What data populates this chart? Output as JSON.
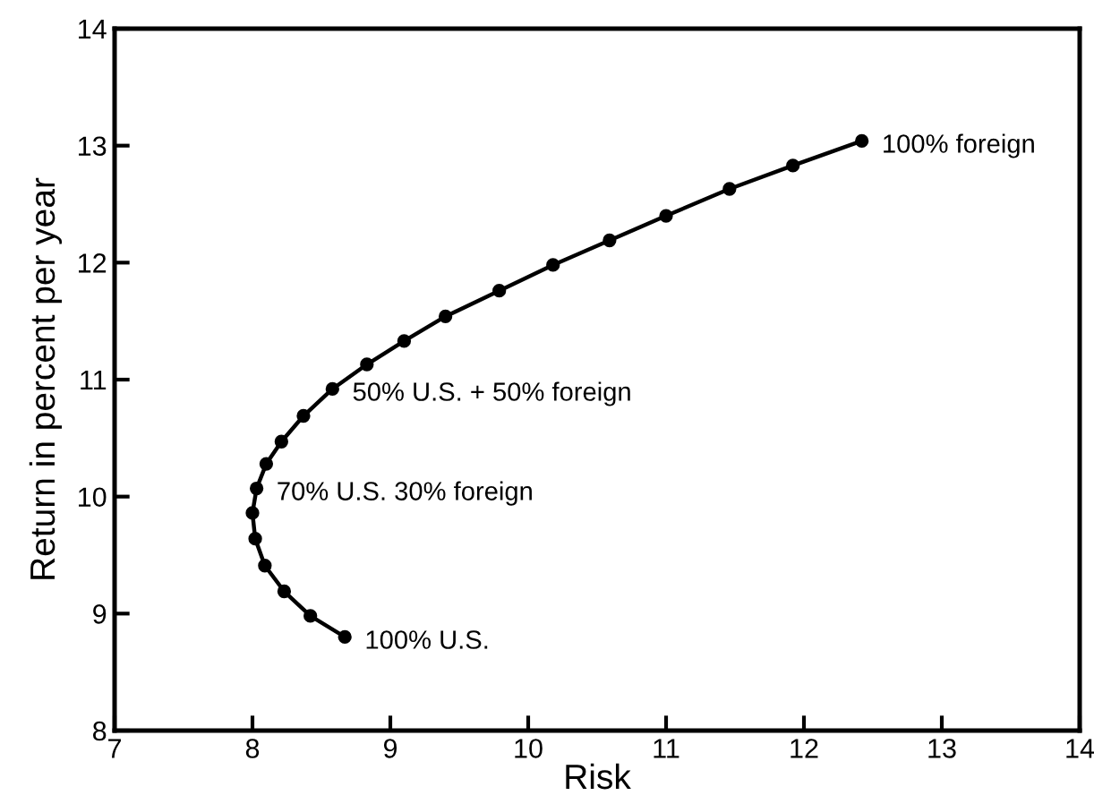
{
  "chart_data": {
    "type": "line",
    "xlabel": "Risk",
    "ylabel": "Return in percent per year",
    "x": [
      8.67,
      8.42,
      8.23,
      8.09,
      8.02,
      8.0,
      8.03,
      8.1,
      8.21,
      8.37,
      8.58,
      8.83,
      9.1,
      9.4,
      9.79,
      10.18,
      10.59,
      11.0,
      11.46,
      11.92,
      12.42
    ],
    "series": [
      {
        "color": "#000000",
        "values": [
          8.8,
          8.98,
          9.19,
          9.41,
          9.64,
          9.86,
          10.07,
          10.28,
          10.47,
          10.69,
          10.92,
          11.13,
          11.33,
          11.54,
          11.76,
          11.98,
          12.19,
          12.4,
          12.63,
          12.83,
          13.04
        ]
      }
    ],
    "xlim": [
      7,
      14
    ],
    "ylim": [
      8,
      14
    ],
    "xticks": [
      7,
      8,
      9,
      10,
      11,
      12,
      13,
      14
    ],
    "yticks": [
      8,
      9,
      10,
      11,
      12,
      13,
      14
    ],
    "grid": false,
    "marker": "circle",
    "line_style": "solid",
    "annotations": [
      {
        "text": "100% foreign",
        "x": 12.42,
        "y": 13.04
      },
      {
        "text": "50% U.S. + 50% foreign",
        "x": 8.58,
        "y": 10.92
      },
      {
        "text": "70% U.S. 30% foreign",
        "x": 8.03,
        "y": 10.07
      },
      {
        "text": "100% U.S.",
        "x": 8.67,
        "y": 8.8
      }
    ]
  }
}
